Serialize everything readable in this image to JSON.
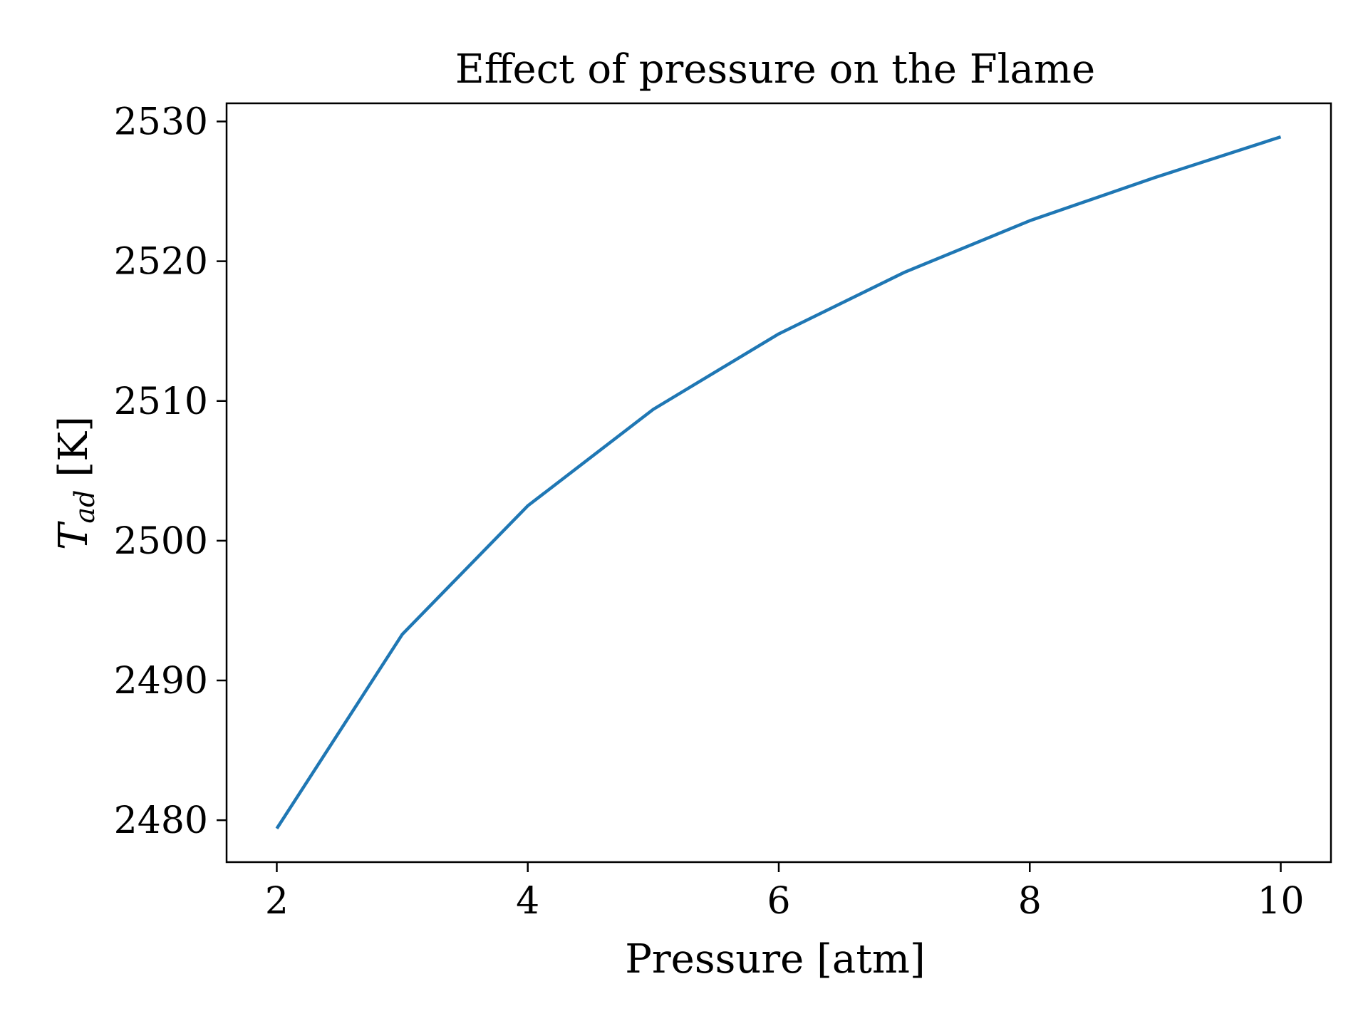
{
  "chart_data": {
    "type": "line",
    "title": "Effect of pressure on the Flame",
    "xlabel": "Pressure [atm]",
    "ylabel_main": "T",
    "ylabel_sub": "ad",
    "ylabel_unit": "[K]",
    "xlim": [
      1.6,
      10.4
    ],
    "ylim": [
      2477,
      2531.3
    ],
    "xticks": [
      2,
      4,
      6,
      8,
      10
    ],
    "yticks": [
      2480,
      2490,
      2500,
      2510,
      2520,
      2530
    ],
    "grid": false,
    "legend": "none",
    "series": [
      {
        "color": "#1f77b4",
        "x": [
          2,
          3,
          4,
          5,
          6,
          7,
          8,
          9,
          10
        ],
        "y": [
          2479.4,
          2493.3,
          2502.5,
          2509.4,
          2514.8,
          2519.2,
          2522.9,
          2526.0,
          2528.9
        ]
      }
    ]
  }
}
